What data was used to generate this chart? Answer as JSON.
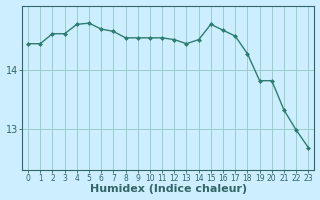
{
  "x": [
    0,
    1,
    2,
    3,
    4,
    5,
    6,
    7,
    8,
    9,
    10,
    11,
    12,
    13,
    14,
    15,
    16,
    17,
    18,
    19,
    20,
    21,
    22,
    23
  ],
  "y": [
    14.45,
    14.45,
    14.62,
    14.62,
    14.78,
    14.8,
    14.7,
    14.66,
    14.55,
    14.55,
    14.55,
    14.55,
    14.52,
    14.45,
    14.52,
    14.78,
    14.68,
    14.58,
    14.28,
    13.82,
    13.82,
    13.32,
    12.98,
    12.68
  ],
  "line_color": "#2e7d70",
  "marker": "D",
  "marker_color": "#2e7d70",
  "marker_size": 2.0,
  "background_color": "#cceeff",
  "grid_color": "#99cccc",
  "axis_color": "#336666",
  "text_color": "#336666",
  "xlabel": "Humidex (Indice chaleur)",
  "xlabel_fontsize": 8,
  "yticks": [
    13,
    14
  ],
  "ytick_fontsize": 7,
  "xtick_labels": [
    "0",
    "1",
    "2",
    "3",
    "4",
    "5",
    "6",
    "7",
    "8",
    "9",
    "10",
    "11",
    "12",
    "13",
    "14",
    "15",
    "16",
    "17",
    "18",
    "19",
    "20",
    "21",
    "22",
    "23"
  ],
  "xtick_fontsize": 5.5,
  "ylim": [
    12.3,
    15.1
  ],
  "xlim": [
    -0.5,
    23.5
  ],
  "linewidth": 1.0
}
